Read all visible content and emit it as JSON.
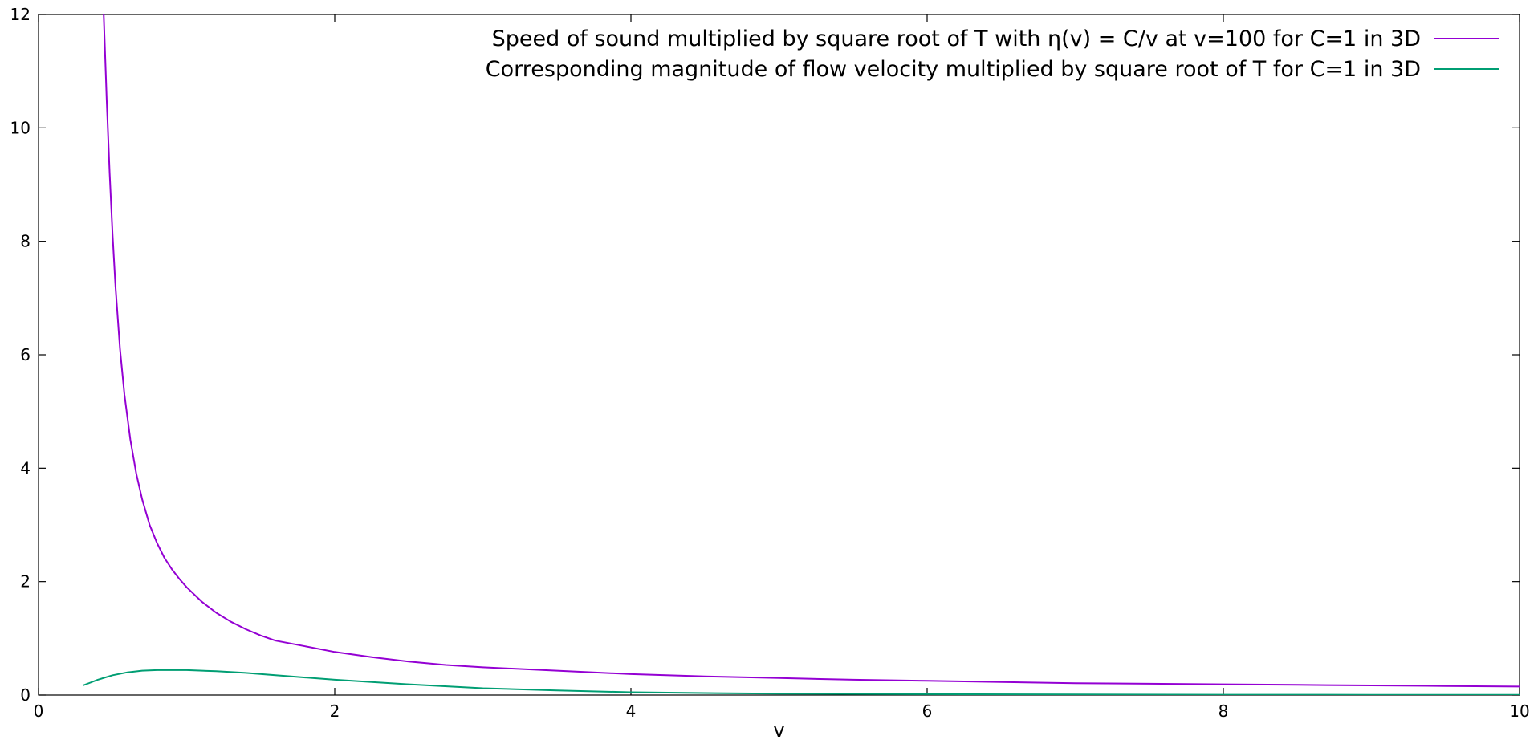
{
  "chart_data": {
    "type": "line",
    "xlabel": "v",
    "ylabel": "",
    "xlim": [
      0,
      10
    ],
    "ylim": [
      0,
      12
    ],
    "xticks": [
      "0",
      "2",
      "4",
      "6",
      "8",
      "10"
    ],
    "yticks": [
      "0",
      "2",
      "4",
      "6",
      "8",
      "10",
      "12"
    ],
    "grid": false,
    "legend_position": "top-right",
    "series": [
      {
        "name": "Speed of sound multiplied by square root of T with η(v) = C/v at v=100 for C=1 in 3D",
        "color": "#9400d3",
        "x": [
          0.44,
          0.46,
          0.48,
          0.5,
          0.52,
          0.55,
          0.58,
          0.62,
          0.66,
          0.7,
          0.75,
          0.8,
          0.85,
          0.9,
          0.95,
          1.0,
          1.1,
          1.2,
          1.3,
          1.4,
          1.5,
          1.6,
          1.8,
          2.0,
          2.25,
          2.5,
          2.75,
          3.0,
          3.5,
          4.0,
          4.5,
          5.0,
          5.5,
          6.0,
          6.5,
          7.0,
          7.5,
          8.0,
          8.5,
          9.0,
          9.5,
          10.0
        ],
        "y": [
          12.0,
          10.5,
          9.2,
          8.1,
          7.2,
          6.1,
          5.3,
          4.5,
          3.9,
          3.45,
          3.0,
          2.68,
          2.42,
          2.22,
          2.05,
          1.9,
          1.65,
          1.45,
          1.29,
          1.16,
          1.05,
          0.96,
          0.86,
          0.76,
          0.67,
          0.59,
          0.53,
          0.49,
          0.43,
          0.37,
          0.33,
          0.3,
          0.27,
          0.25,
          0.23,
          0.21,
          0.2,
          0.19,
          0.18,
          0.17,
          0.16,
          0.15
        ]
      },
      {
        "name": "Corresponding magnitude of flow velocity multiplied by square root of T for C=1 in 3D",
        "color": "#009e73",
        "x": [
          0.3,
          0.35,
          0.4,
          0.5,
          0.6,
          0.7,
          0.8,
          0.9,
          1.0,
          1.2,
          1.4,
          1.6,
          1.8,
          2.0,
          2.5,
          3.0,
          3.5,
          4.0,
          4.5,
          5.0,
          6.0,
          7.0,
          8.0,
          9.0,
          10.0
        ],
        "y": [
          0.17,
          0.22,
          0.27,
          0.35,
          0.4,
          0.43,
          0.44,
          0.44,
          0.44,
          0.42,
          0.39,
          0.35,
          0.31,
          0.27,
          0.19,
          0.12,
          0.08,
          0.05,
          0.035,
          0.025,
          0.015,
          0.01,
          0.006,
          0.004,
          0.003
        ]
      }
    ]
  }
}
